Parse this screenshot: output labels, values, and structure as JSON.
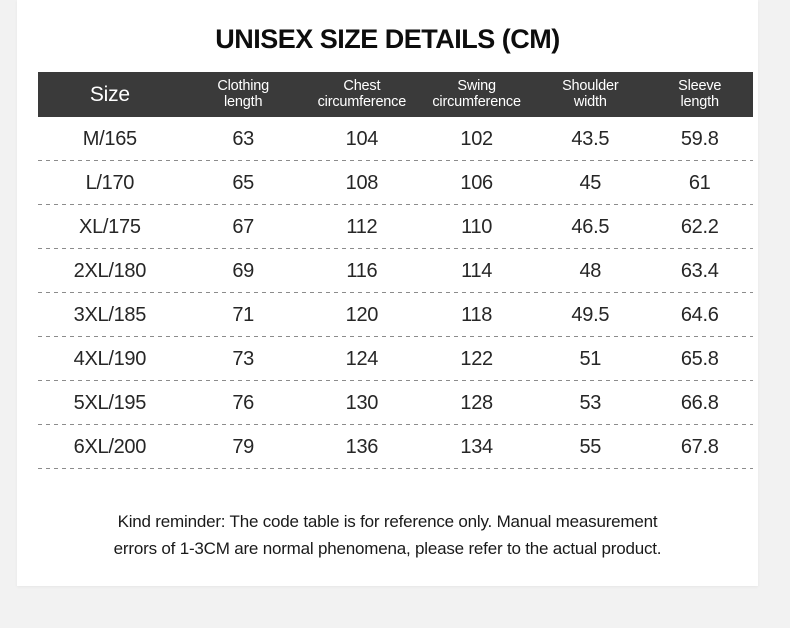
{
  "page": {
    "background_color": "#f2f2f2",
    "card_color": "#ffffff"
  },
  "title": "UNISEX SIZE DETAILS (CM)",
  "table": {
    "header_background": "#3a3a3a",
    "header_text_color": "#ffffff",
    "separator_color": "#8c8c8c",
    "columns": [
      {
        "lines": [
          "Size"
        ]
      },
      {
        "lines": [
          "Clothing",
          "length"
        ]
      },
      {
        "lines": [
          "Chest",
          "circumference"
        ]
      },
      {
        "lines": [
          "Swing",
          "circumference"
        ]
      },
      {
        "lines": [
          "Shoulder",
          "width"
        ]
      },
      {
        "lines": [
          "Sleeve",
          "length"
        ]
      }
    ],
    "rows": [
      [
        "M/165",
        "63",
        "104",
        "102",
        "43.5",
        "59.8"
      ],
      [
        "L/170",
        "65",
        "108",
        "106",
        "45",
        "61"
      ],
      [
        "XL/175",
        "67",
        "112",
        "110",
        "46.5",
        "62.2"
      ],
      [
        "2XL/180",
        "69",
        "116",
        "114",
        "48",
        "63.4"
      ],
      [
        "3XL/185",
        "71",
        "120",
        "118",
        "49.5",
        "64.6"
      ],
      [
        "4XL/190",
        "73",
        "124",
        "122",
        "51",
        "65.8"
      ],
      [
        "5XL/195",
        "76",
        "130",
        "128",
        "53",
        "66.8"
      ],
      [
        "6XL/200",
        "79",
        "136",
        "134",
        "55",
        "67.8"
      ]
    ]
  },
  "note": {
    "line1": "Kind reminder: The code table is for reference only. Manual measurement",
    "line2": "errors of 1-3CM are normal phenomena, please refer to the actual product."
  },
  "chart_data": {
    "type": "table",
    "title": "UNISEX SIZE DETAILS (CM)",
    "columns": [
      "Size",
      "Clothing length",
      "Chest circumference",
      "Swing circumference",
      "Shoulder width",
      "Sleeve length"
    ],
    "rows": [
      [
        "M/165",
        63,
        104,
        102,
        43.5,
        59.8
      ],
      [
        "L/170",
        65,
        108,
        106,
        45,
        61
      ],
      [
        "XL/175",
        67,
        112,
        110,
        46.5,
        62.2
      ],
      [
        "2XL/180",
        69,
        116,
        114,
        48,
        63.4
      ],
      [
        "3XL/185",
        71,
        120,
        118,
        49.5,
        64.6
      ],
      [
        "4XL/190",
        73,
        124,
        122,
        51,
        65.8
      ],
      [
        "5XL/195",
        76,
        130,
        128,
        53,
        66.8
      ],
      [
        "6XL/200",
        79,
        136,
        134,
        55,
        67.8
      ]
    ],
    "units": "cm",
    "footnote": "Kind reminder: The code table is for reference only. Manual measurement errors of 1-3CM are normal phenomena, please refer to the actual product."
  }
}
